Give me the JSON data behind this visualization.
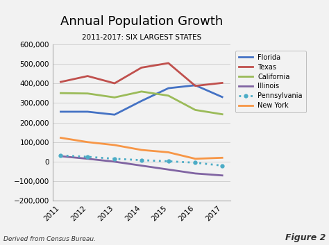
{
  "title": "Annual Population Growth",
  "subtitle": "2011-2017: SIX LARGEST STATES",
  "years": [
    2011,
    2012,
    2013,
    2014,
    2015,
    2016,
    2017
  ],
  "series": {
    "Florida": [
      255000,
      255000,
      240000,
      310000,
      375000,
      390000,
      330000
    ],
    "Texas": [
      407000,
      437000,
      400000,
      480000,
      503000,
      387000,
      402000
    ],
    "California": [
      350000,
      348000,
      328000,
      358000,
      337000,
      264000,
      242000
    ],
    "Illinois": [
      28000,
      15000,
      0,
      -20000,
      -40000,
      -60000,
      -70000
    ],
    "Pennsylvania": [
      32000,
      25000,
      15000,
      8000,
      2000,
      -5000,
      -20000
    ],
    "New York": [
      122000,
      100000,
      85000,
      60000,
      48000,
      15000,
      20000
    ]
  },
  "colors": {
    "Florida": "#4472C4",
    "Texas": "#C0504D",
    "California": "#9BBB59",
    "Illinois": "#8064A2",
    "Pennsylvania": "#4BACC6",
    "New York": "#F79646"
  },
  "styles": {
    "Florida": "solid",
    "Texas": "solid",
    "California": "solid",
    "Illinois": "solid",
    "Pennsylvania": "dotted",
    "New York": "solid"
  },
  "ylim": [
    -200000,
    600000
  ],
  "yticks": [
    -200000,
    -100000,
    0,
    100000,
    200000,
    300000,
    400000,
    500000,
    600000
  ],
  "footnote": "Derived from Census Bureau.",
  "figure_label": "Figure 2",
  "background_color": "#f0f0f0",
  "plot_bg_color": "#f0f0f0",
  "grid_color": "#cccccc"
}
